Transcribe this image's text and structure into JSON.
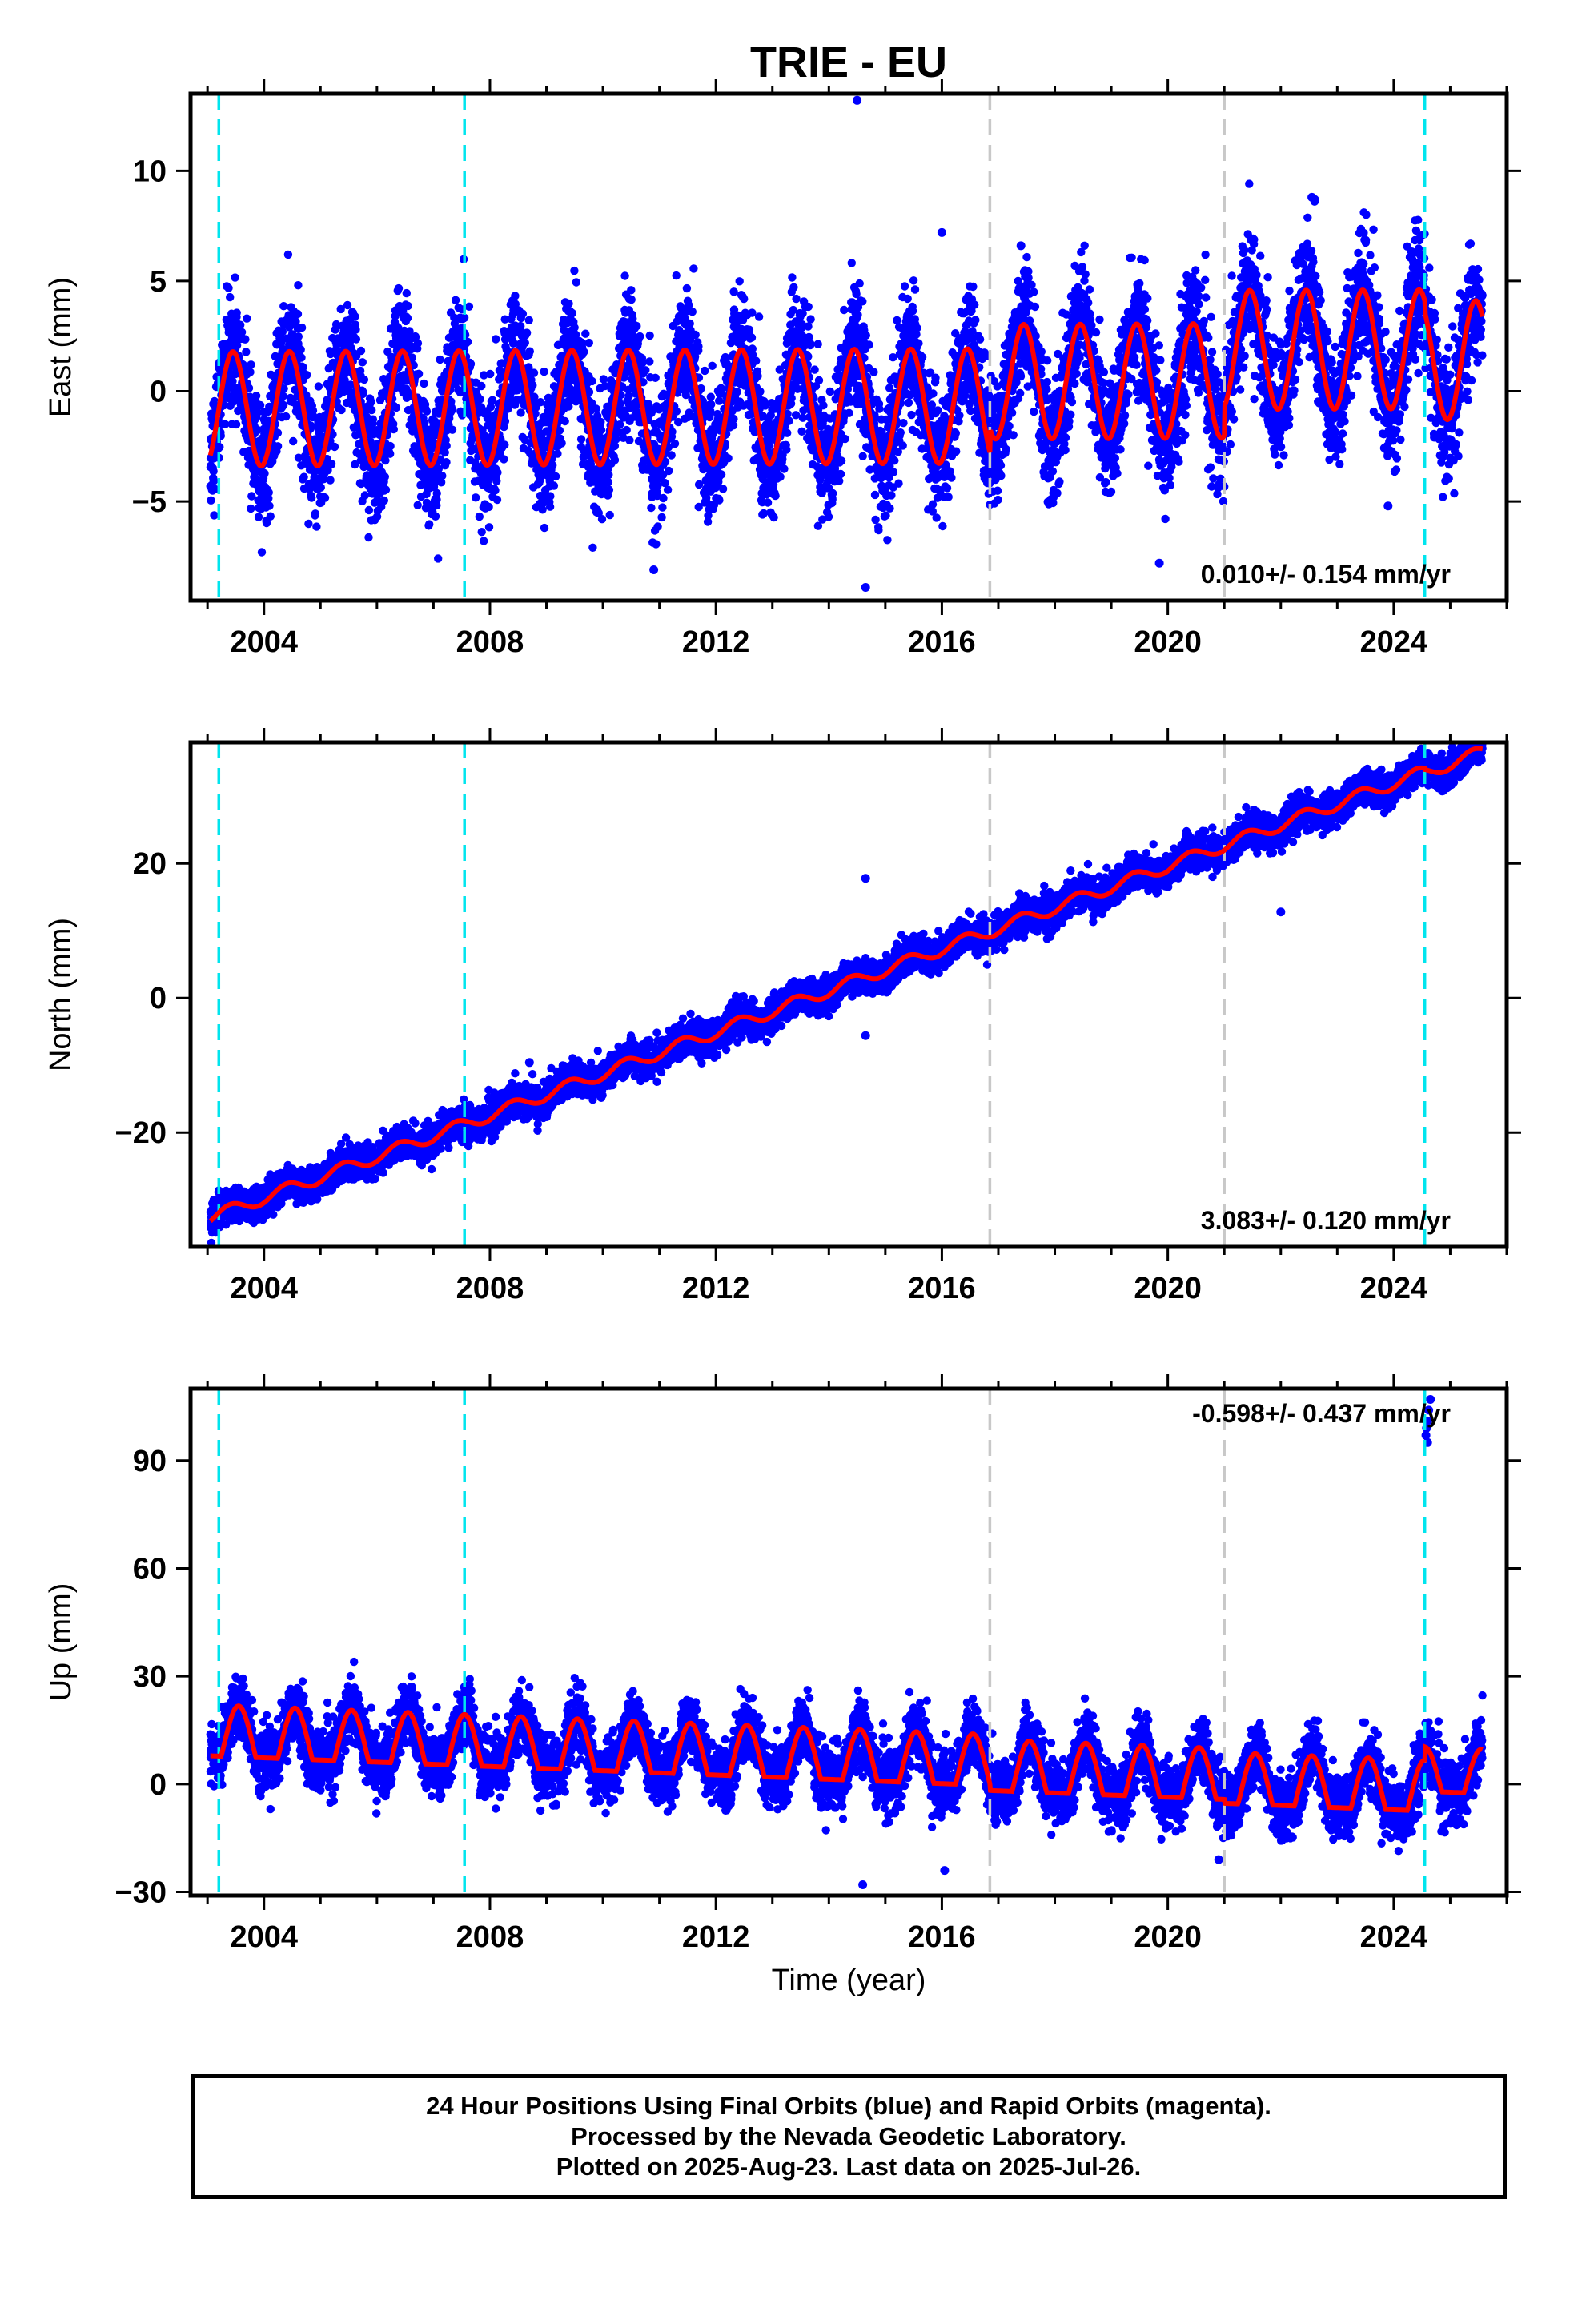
{
  "chart_data": {
    "title": "TRIE - EU",
    "type": "scatter",
    "x_axis": {
      "label": "Time (year)",
      "range": [
        2002.7,
        2026.0
      ],
      "major_ticks": [
        2004,
        2008,
        2012,
        2016,
        2020,
        2024
      ],
      "tick_labels": [
        "2004",
        "2008",
        "2012",
        "2016",
        "2020",
        "2024"
      ],
      "minor_step": 1
    },
    "offset_lines": [
      {
        "year": 2003.2,
        "color": "#00e5ee",
        "style": "dashed"
      },
      {
        "year": 2007.55,
        "color": "#00e5ee",
        "style": "dashed"
      },
      {
        "year": 2016.85,
        "color": "#c8c8c8",
        "style": "dashed"
      },
      {
        "year": 2021.0,
        "color": "#c8c8c8",
        "style": "dashed"
      },
      {
        "year": 2024.55,
        "color": "#00e5ee",
        "style": "dashed"
      }
    ],
    "colors": {
      "final_orbits": "#0000ff",
      "rapid_orbits": "#ff00ff",
      "model": "#ff0000"
    },
    "panels": [
      {
        "id": "east",
        "ylabel": "East (mm)",
        "ylim": [
          -9.5,
          13.5
        ],
        "y_ticks": [
          -5,
          0,
          5,
          10
        ],
        "y_tick_labels": [
          "−5",
          "0",
          "5",
          "10"
        ],
        "rate_text": "0.010+/- 0.154 mm/yr",
        "rate_position": "bottom-right",
        "model": {
          "trend_mm_per_yr": 0.01,
          "mean_by_period": [
            [
              2002.7,
              -0.7
            ],
            [
              2016.85,
              0.4
            ],
            [
              2021.0,
              1.8
            ],
            [
              2024.55,
              1.3
            ]
          ],
          "annual_amplitude": [
            [
              2002.7,
              2.6
            ],
            [
              2016.85,
              2.6
            ],
            [
              2021.0,
              2.7
            ]
          ],
          "annual_phase_peak": 0.45
        },
        "scatter": {
          "start": 2003.05,
          "end": 2025.57,
          "noise_sd": 1.35,
          "daily": true
        },
        "outliers": [
          [
            2014.5,
            13.2
          ],
          [
            2014.65,
            -8.9
          ],
          [
            2016.0,
            7.2
          ],
          [
            2022.55,
            8.8
          ],
          [
            2022.6,
            8.7
          ],
          [
            2019.85,
            -7.8
          ],
          [
            2010.9,
            -8.1
          ],
          [
            2017.4,
            6.6
          ],
          [
            2023.9,
            -5.2
          ]
        ]
      },
      {
        "id": "north",
        "ylabel": "North (mm)",
        "ylim": [
          -37,
          38
        ],
        "y_ticks": [
          -20,
          0,
          20
        ],
        "y_tick_labels": [
          "−20",
          "0",
          "20"
        ],
        "rate_text": "3.083+/- 0.120 mm/yr",
        "rate_position": "bottom-right",
        "model": {
          "trend_mm_per_yr": 3.083,
          "value_at_start": -32.5,
          "start_year": 2003.1,
          "annual_amplitude": [
            [
              2002.7,
              0.9
            ]
          ],
          "annual_phase_peak": 0.4,
          "mean_by_period": [
            [
              2002.7,
              0.0
            ],
            [
              2024.55,
              -0.2
            ]
          ]
        },
        "scatter": {
          "start": 2003.05,
          "end": 2025.57,
          "noise_sd": 1.2,
          "daily": true
        },
        "outliers": [
          [
            2014.65,
            17.8
          ],
          [
            2014.65,
            -5.6
          ],
          [
            2008.7,
            -9.6
          ],
          [
            2022.0,
            12.8
          ]
        ]
      },
      {
        "id": "up",
        "ylabel": "Up (mm)",
        "ylim": [
          -31,
          110
        ],
        "y_ticks": [
          -30,
          0,
          30,
          60,
          90
        ],
        "y_tick_labels": [
          "−30",
          "0",
          "30",
          "60",
          "90"
        ],
        "rate_text": "-0.598+/- 0.437 mm/yr",
        "rate_position": "top-right",
        "model": {
          "trend_mm_per_yr": -0.598,
          "mean_by_period": [
            [
              2002.7,
              5.0
            ],
            [
              2016.85,
              3.6
            ],
            [
              2021.0,
              2.5
            ],
            [
              2024.55,
              7.5
            ]
          ],
          "annual_amplitude": [
            [
              2002.7,
              7.5
            ],
            [
              2024.55,
              6.5
            ]
          ],
          "annual_phase_peak": 0.55,
          "shape": "rectified"
        },
        "scatter": {
          "start": 2003.05,
          "end": 2025.57,
          "noise_sd": 4.2,
          "daily": true
        },
        "outliers": [
          [
            2024.57,
            97
          ],
          [
            2024.6,
            101
          ],
          [
            2024.62,
            104
          ],
          [
            2024.65,
            107
          ],
          [
            2024.58,
            99
          ],
          [
            2024.6,
            95
          ],
          [
            2014.6,
            -28
          ],
          [
            2016.05,
            -24
          ],
          [
            2007.55,
            27
          ],
          [
            2020.9,
            -21
          ]
        ]
      }
    ]
  },
  "footer": {
    "line1": "24 Hour Positions Using Final Orbits (blue) and Rapid Orbits (magenta).",
    "line2": "Processed by the Nevada Geodetic Laboratory.",
    "line3": "Plotted on 2025-Aug-23. Last data on 2025-Jul-26."
  }
}
